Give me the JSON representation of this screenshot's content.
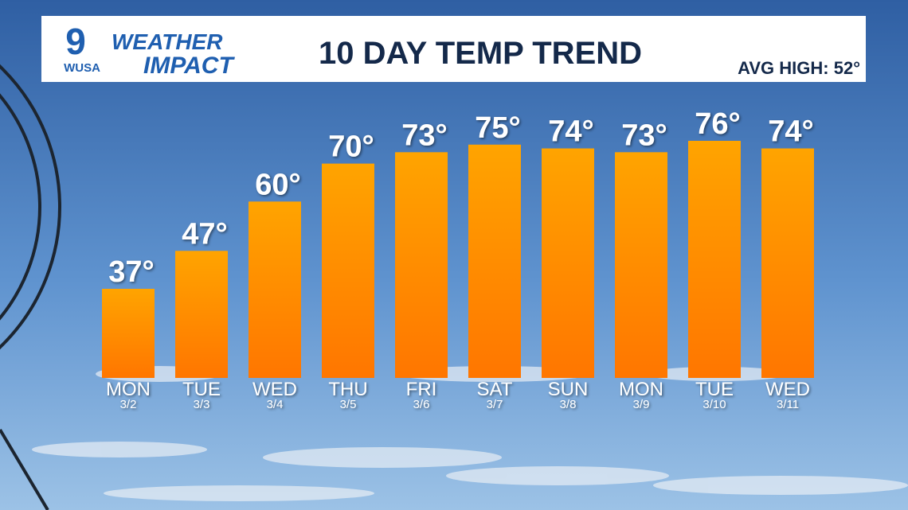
{
  "header": {
    "logo_number": "9",
    "logo_station": "WUSA",
    "brand_top": "WEATHER",
    "brand_bottom": "IMPACT"
  },
  "chart_data": {
    "type": "bar",
    "title": "10 DAY TEMP TREND",
    "annotation": "AVG HIGH: 52°",
    "categories": [
      "MON",
      "TUE",
      "WED",
      "THU",
      "FRI",
      "SAT",
      "SUN",
      "MON",
      "TUE",
      "WED"
    ],
    "dates": [
      "3/2",
      "3/3",
      "3/4",
      "3/5",
      "3/6",
      "3/7",
      "3/8",
      "3/9",
      "3/10",
      "3/11"
    ],
    "values": [
      37,
      47,
      60,
      70,
      73,
      75,
      74,
      73,
      76,
      74
    ],
    "value_labels": [
      "37°",
      "47°",
      "60°",
      "70°",
      "73°",
      "75°",
      "74°",
      "73°",
      "76°",
      "74°"
    ],
    "color": "#ff8c00"
  }
}
